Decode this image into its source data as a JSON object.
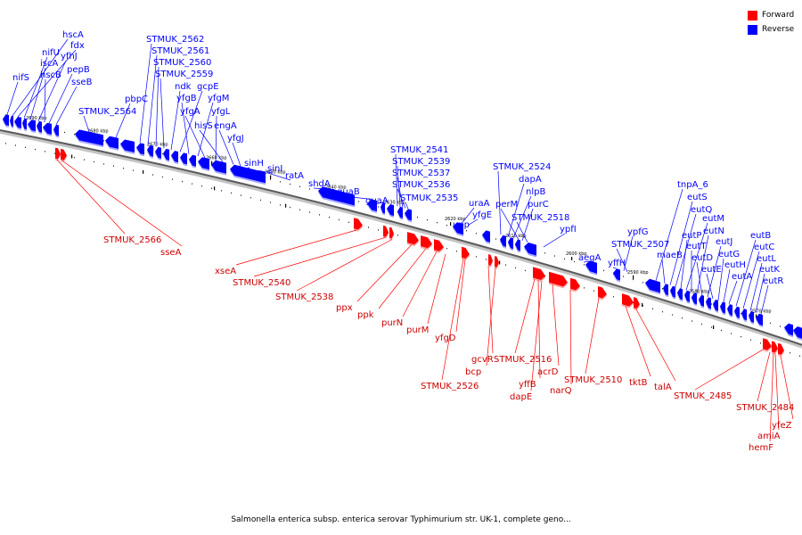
{
  "legend": {
    "forward": {
      "label": "Forward",
      "color": "#ff0000"
    },
    "reverse": {
      "label": "Reverse",
      "color": "#0000ff"
    }
  },
  "caption": "Salmonella enterica subsp. enterica serovar Typhimurium str. UK-1, complete geno...",
  "ticks": [
    "2690 kbp",
    "2680 kbp",
    "2670 kbp",
    "2660 kbp",
    "2650 kbp",
    "2640 kbp",
    "2630 kbp",
    "2620 kbp",
    "2610 kbp",
    "2600 kbp",
    "2590 kbp",
    "2580 kbp",
    "2570 kbp"
  ],
  "reverse_labels": [
    "nifS",
    "hscA",
    "fdx",
    "nifU",
    "iscA",
    "yfhJ",
    "hscB",
    "pepB",
    "sseB",
    "pbpC",
    "STMUK_2564",
    "STMUK_2562",
    "STMUK_2561",
    "STMUK_2560",
    "STMUK_2559",
    "ndk",
    "gcpE",
    "yfgB",
    "yfgM",
    "yfgA",
    "yfgL",
    "hisS",
    "engA",
    "yfgJ",
    "sinH",
    "sinI",
    "ratA",
    "shdA",
    "guaB",
    "guaA",
    "STMUK_2541",
    "STMUK_2539",
    "STMUK_2537",
    "STMUK_2536",
    "STMUK_2535",
    "upp",
    "uraA",
    "yfgE",
    "STMUK_2524",
    "dapA",
    "nlpB",
    "perM",
    "purC",
    "STMUK_2518",
    "ypfI",
    "aegA",
    "yffH",
    "ypfG",
    "STMUK_2507",
    "tnpA_6",
    "maeB",
    "eutS",
    "eutQ",
    "eutP",
    "eutM",
    "eutT",
    "eutN",
    "eutD",
    "eutJ",
    "eutE",
    "eutG",
    "eutH",
    "eutA",
    "eutB",
    "eutC",
    "eutL",
    "eutK",
    "eutR"
  ],
  "forward_labels": [
    "STMUK_2566",
    "sseA",
    "xseA",
    "STMUK_2540",
    "STMUK_2538",
    "ppx",
    "ppk",
    "purN",
    "purM",
    "yfgD",
    "gcvR",
    "bcp",
    "STMUK_2526",
    "STMUK_2516",
    "yffB",
    "dapE",
    "acrD",
    "narQ",
    "STMUK_2510",
    "tktB",
    "talA",
    "STMUK_2485",
    "STMUK_2484",
    "yfeZ",
    "amiA",
    "hemF"
  ]
}
